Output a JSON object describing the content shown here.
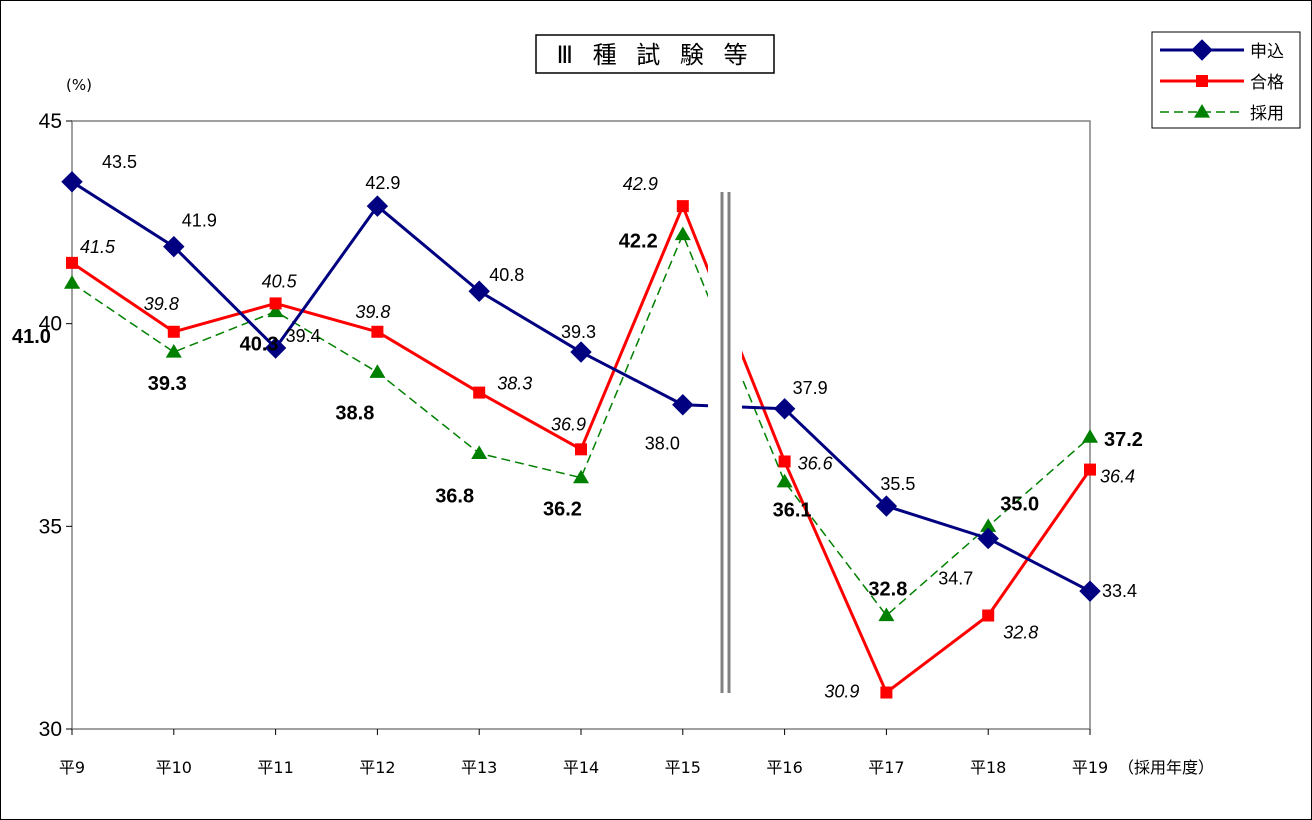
{
  "chart_data": {
    "type": "line",
    "title": "Ⅲ 種 試 験 等",
    "ylabel": "(%)",
    "xlabel_suffix": "（採用年度）",
    "ylim": [
      30,
      45
    ],
    "yticks": [
      "30",
      "35",
      "40",
      "45"
    ],
    "categories": [
      "平9",
      "平10",
      "平11",
      "平12",
      "平13",
      "平14",
      "平15",
      "平16",
      "平17",
      "平18",
      "平19"
    ],
    "series": [
      {
        "name": "申込",
        "color": "#000080",
        "marker": "diamond",
        "dashed": false,
        "values": [
          43.5,
          41.9,
          39.4,
          42.9,
          40.8,
          39.3,
          38.0,
          37.9,
          35.5,
          34.7,
          33.4
        ],
        "labels": [
          "43.5",
          "41.9",
          "39.4",
          "42.9",
          "40.8",
          "39.3",
          "38.0",
          "37.9",
          "35.5",
          "34.7",
          "33.4"
        ]
      },
      {
        "name": "合格",
        "color": "#ff0000",
        "marker": "square",
        "dashed": false,
        "values": [
          41.5,
          39.8,
          40.5,
          39.8,
          38.3,
          36.9,
          42.9,
          36.6,
          30.9,
          32.8,
          36.4
        ],
        "labels": [
          "41.5",
          "39.8",
          "40.5",
          "39.8",
          "38.3",
          "36.9",
          "42.9",
          "36.6",
          "30.9",
          "32.8",
          "36.4"
        ]
      },
      {
        "name": "採用",
        "color": "#008000",
        "marker": "triangle",
        "dashed": true,
        "values": [
          41.0,
          39.3,
          40.3,
          38.8,
          36.8,
          36.2,
          42.2,
          36.1,
          32.8,
          35.0,
          37.2
        ],
        "labels": [
          "41.0",
          "39.3",
          "40.3",
          "38.8",
          "36.8",
          "36.2",
          "42.2",
          "36.1",
          "32.8",
          "35.0",
          "37.2"
        ]
      }
    ],
    "break_marker": "double vertical line between 平15 and 平16",
    "grid": false,
    "legend_position": "top-right"
  }
}
